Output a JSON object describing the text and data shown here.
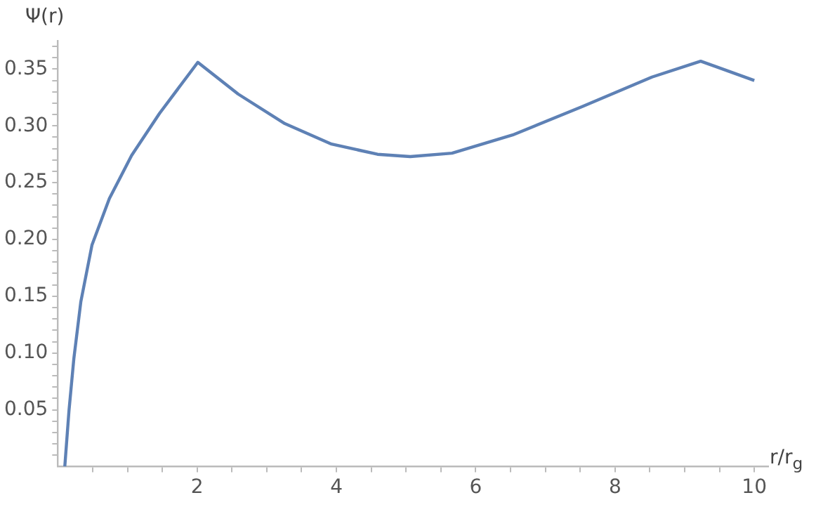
{
  "chart_data": {
    "type": "line",
    "xlabel": "r/r$_{g}$",
    "ylabel": "Ψ(r)",
    "marker": "none",
    "line_style": "solid",
    "grid": false,
    "xlim": [
      0,
      10.2
    ],
    "ylim": [
      0,
      0.375
    ],
    "xticks": [
      {
        "value": 0.5,
        "label": null
      },
      {
        "value": 1,
        "label": null
      },
      {
        "value": 1.5,
        "label": null
      },
      2,
      {
        "value": 2.5,
        "label": null
      },
      {
        "value": 3,
        "label": null
      },
      {
        "value": 3.5,
        "label": null
      },
      4,
      {
        "value": 4.5,
        "label": null
      },
      {
        "value": 5,
        "label": null
      },
      {
        "value": 5.5,
        "label": null
      },
      6,
      {
        "value": 6.5,
        "label": null
      },
      {
        "value": 7,
        "label": null
      },
      {
        "value": 7.5,
        "label": null
      },
      8,
      {
        "value": 8.5,
        "label": null
      },
      {
        "value": 9,
        "label": null
      },
      {
        "value": 9.5,
        "label": null
      },
      10
    ],
    "yticks": [
      {
        "value": 0.01,
        "label": null
      },
      {
        "value": 0.02,
        "label": null
      },
      {
        "value": 0.03,
        "label": null
      },
      {
        "value": 0.04,
        "label": null
      },
      {
        "value": 0.05,
        "label": "0.05"
      },
      {
        "value": 0.06,
        "label": null
      },
      {
        "value": 0.07,
        "label": null
      },
      {
        "value": 0.08,
        "label": null
      },
      {
        "value": 0.09,
        "label": null
      },
      {
        "value": 0.1,
        "label": "0.10"
      },
      {
        "value": 0.11,
        "label": null
      },
      {
        "value": 0.12,
        "label": null
      },
      {
        "value": 0.13,
        "label": null
      },
      {
        "value": 0.14,
        "label": null
      },
      {
        "value": 0.15,
        "label": "0.15"
      },
      {
        "value": 0.16,
        "label": null
      },
      {
        "value": 0.17,
        "label": null
      },
      {
        "value": 0.18,
        "label": null
      },
      {
        "value": 0.19,
        "label": null
      },
      {
        "value": 0.2,
        "label": "0.20"
      },
      {
        "value": 0.21,
        "label": null
      },
      {
        "value": 0.22,
        "label": null
      },
      {
        "value": 0.23,
        "label": null
      },
      {
        "value": 0.24,
        "label": null
      },
      {
        "value": 0.25,
        "label": "0.25"
      },
      {
        "value": 0.26,
        "label": null
      },
      {
        "value": 0.27,
        "label": null
      },
      {
        "value": 0.28,
        "label": null
      },
      {
        "value": 0.29,
        "label": null
      },
      {
        "value": 0.3,
        "label": "0.30"
      },
      {
        "value": 0.31,
        "label": null
      },
      {
        "value": 0.32,
        "label": null
      },
      {
        "value": 0.33,
        "label": null
      },
      {
        "value": 0.34,
        "label": null
      },
      {
        "value": 0.35,
        "label": "0.35"
      },
      {
        "value": 0.36,
        "label": null
      },
      {
        "value": 0.37,
        "label": null
      }
    ],
    "series": [
      {
        "color": "#5e81b5",
        "x": [
          0.1,
          0.16,
          0.23,
          0.33,
          0.49,
          0.74,
          1.06,
          1.46,
          2.01,
          2.59,
          3.26,
          3.93,
          4.59,
          5.06,
          5.66,
          6.53,
          7.53,
          8.53,
          9.23,
          10.0
        ],
        "values": [
          0,
          0.049,
          0.095,
          0.145,
          0.195,
          0.236,
          0.274,
          0.311,
          0.356,
          0.328,
          0.302,
          0.284,
          0.275,
          0.273,
          0.276,
          0.292,
          0.317,
          0.343,
          0.357,
          0.34
        ]
      }
    ]
  }
}
